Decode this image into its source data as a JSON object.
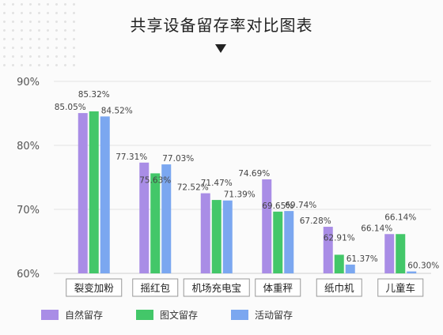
{
  "chart_data": {
    "type": "bar",
    "title": "共享设备留存率对比图表",
    "categories": [
      "裂变加粉",
      "摇红包",
      "机场充电宝",
      "体重秤",
      "纸巾机",
      "儿童车"
    ],
    "series": [
      {
        "name": "自然留存",
        "color": "#a98de6",
        "values": [
          85.05,
          77.31,
          72.52,
          74.69,
          67.28,
          66.14
        ],
        "labels": [
          "85.05%",
          "77.31%",
          "72.52%",
          "74.69%",
          "67.28%",
          "66.14%"
        ]
      },
      {
        "name": "图文留存",
        "color": "#43c769",
        "values": [
          85.32,
          75.63,
          71.47,
          69.65,
          62.91,
          66.14
        ],
        "labels": [
          "85.32%",
          "75.63%",
          "71.47%",
          "69.65%",
          "62.91%",
          "66.14%"
        ]
      },
      {
        "name": "活动留存",
        "color": "#7ba7f0",
        "values": [
          84.52,
          77.03,
          71.39,
          69.74,
          61.37,
          60.3
        ],
        "labels": [
          "84.52%",
          "77.03%",
          "71.39%",
          "69.74%",
          "61.37%",
          "60.30%"
        ]
      }
    ],
    "yticks": [
      60,
      70,
      80,
      90
    ],
    "ytick_labels": [
      "60%",
      "70%",
      "80%",
      "90%"
    ],
    "ylim": [
      60,
      90
    ],
    "grid": true,
    "legend_position": "bottom-left"
  }
}
